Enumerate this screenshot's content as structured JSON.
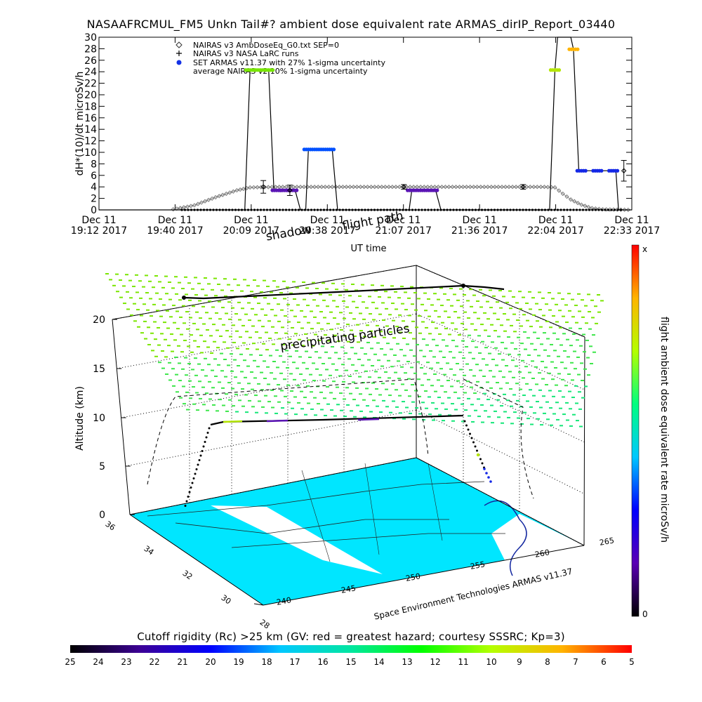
{
  "title": "NASAAFRCMUL_FM5 Unkn Tail#? ambient dose equivalent rate ARMAS_dirIP_Report_03440",
  "chart_data": [
    {
      "type": "line",
      "title": "NASAAFRCMUL_FM5 Unkn Tail#? ambient dose equivalent rate ARMAS_dirIP_Report_03440",
      "xlabel": "UT time",
      "ylabel": "dH*(10)/dt microSv/h",
      "ylim": [
        0,
        30
      ],
      "yticks": [
        "0",
        "2",
        "4",
        "6",
        "8",
        "10",
        "12",
        "14",
        "16",
        "18",
        "20",
        "22",
        "24",
        "26",
        "28",
        "30"
      ],
      "xticks": [
        {
          "line1": "Dec 11",
          "line2": "19:12 2017"
        },
        {
          "line1": "Dec 11",
          "line2": "19:40 2017"
        },
        {
          "line1": "Dec 11",
          "line2": "20:09 2017"
        },
        {
          "line1": "Dec 11",
          "line2": "20:38 2017"
        },
        {
          "line1": "Dec 11",
          "line2": "21:07 2017"
        },
        {
          "line1": "Dec 11",
          "line2": "21:36 2017"
        },
        {
          "line1": "Dec 11",
          "line2": "22:04 2017"
        },
        {
          "line1": "Dec 11",
          "line2": "22:33 2017"
        }
      ],
      "xdomain": [
        "19:12",
        "22:33"
      ],
      "legend": [
        {
          "symbol": "diamond",
          "label": "NAIRAS v3 AmbDoseEq_G0.txt SEP=0"
        },
        {
          "symbol": "plus",
          "label": "NAIRAS v3 NASA LaRC runs"
        },
        {
          "symbol": "blue-dot",
          "label": "SET ARMAS v11.37 with 27% 1-sigma uncertainty"
        },
        {
          "symbol": "none",
          "label": "average NAIRAS v2 10% 1-sigma uncertainty"
        }
      ],
      "legend_position": "top-left",
      "annotations": [
        "shadow",
        "flight path"
      ],
      "series": [
        {
          "name": "NAIRAS v3 AmbDoseEq_G0.txt SEP=0",
          "style": "diamond",
          "color": "#777777",
          "points": [
            [
              "19:40",
              0.1
            ],
            [
              "19:48",
              0.8
            ],
            [
              "19:56",
              2.2
            ],
            [
              "20:04",
              3.4
            ],
            [
              "20:09",
              3.9
            ],
            [
              "20:20",
              4.0
            ],
            [
              "20:40",
              4.0
            ],
            [
              "21:00",
              4.0
            ],
            [
              "21:20",
              4.0
            ],
            [
              "21:40",
              4.0
            ],
            [
              "22:00",
              4.0
            ],
            [
              "22:04",
              3.9
            ],
            [
              "22:07",
              2.8
            ],
            [
              "22:10",
              1.8
            ],
            [
              "22:14",
              0.9
            ],
            [
              "22:18",
              0.3
            ],
            [
              "22:22",
              0.1
            ],
            [
              "22:33",
              0.0
            ]
          ]
        },
        {
          "name": "SET ARMAS v11.37 with 27% 1-sigma uncertainty",
          "style": "dots",
          "points": [
            {
              "x": "20:09",
              "y": 24.3,
              "c": "#78e600"
            },
            {
              "x": "20:12",
              "y": 24.3,
              "c": "#78e600"
            },
            {
              "x": "20:16",
              "y": 24.3,
              "c": "#78e600"
            },
            {
              "x": "20:19",
              "y": 3.4,
              "c": "#5a14b4"
            },
            {
              "x": "20:22",
              "y": 3.4,
              "c": "#5a14b4"
            },
            {
              "x": "20:25",
              "y": 3.4,
              "c": "#5a14b4"
            },
            {
              "x": "20:31",
              "y": 10.5,
              "c": "#0050ff"
            },
            {
              "x": "20:35",
              "y": 10.5,
              "c": "#0050ff"
            },
            {
              "x": "20:39",
              "y": 10.5,
              "c": "#0050ff"
            },
            {
              "x": "21:10",
              "y": 3.4,
              "c": "#5a14b4"
            },
            {
              "x": "21:14",
              "y": 3.4,
              "c": "#5a14b4"
            },
            {
              "x": "21:18",
              "y": 3.4,
              "c": "#5a14b4"
            },
            {
              "x": "22:04",
              "y": 24.3,
              "c": "#b4e600"
            },
            {
              "x": "22:11",
              "y": 27.9,
              "c": "#ffb400"
            },
            {
              "x": "22:14",
              "y": 6.8,
              "c": "#1428e6"
            },
            {
              "x": "22:20",
              "y": 6.8,
              "c": "#1428e6"
            },
            {
              "x": "22:26",
              "y": 6.8,
              "c": "#1428e6"
            }
          ]
        },
        {
          "name": "SET ARMAS v11.37 step",
          "style": "line",
          "color": "#000000",
          "points": [
            [
              "19:12",
              0
            ],
            [
              "20:07",
              0
            ],
            [
              "20:09",
              24.3
            ],
            [
              "20:16",
              24.3
            ],
            [
              "20:18",
              3.4
            ],
            [
              "20:26",
              3.4
            ],
            [
              "20:28",
              0
            ],
            [
              "20:30",
              0
            ],
            [
              "20:31",
              10.5
            ],
            [
              "20:40",
              10.5
            ],
            [
              "20:42",
              0
            ],
            [
              "21:09",
              0
            ],
            [
              "21:10",
              3.4
            ],
            [
              "21:19",
              3.4
            ],
            [
              "21:21",
              0
            ],
            [
              "22:02",
              0
            ],
            [
              "22:04",
              24.3
            ],
            [
              "22:05",
              30
            ],
            [
              "22:10",
              30
            ],
            [
              "22:11",
              27.9
            ],
            [
              "22:13",
              6.8
            ],
            [
              "22:27",
              6.8
            ],
            [
              "22:28",
              0
            ],
            [
              "22:33",
              0
            ]
          ]
        }
      ],
      "error_bars": [
        {
          "x": "20:14",
          "y": 4.0,
          "lo": 2.9,
          "hi": 5.1,
          "marker": "diamond"
        },
        {
          "x": "20:24",
          "y": 3.4,
          "lo": 2.5,
          "hi": 4.3,
          "marker": "diamond"
        },
        {
          "x": "21:07",
          "y": 4.0,
          "lo": 3.6,
          "hi": 4.4,
          "marker": "diamond"
        },
        {
          "x": "21:52",
          "y": 4.0,
          "lo": 3.6,
          "hi": 4.4,
          "marker": "diamond"
        },
        {
          "x": "22:30",
          "y": 6.8,
          "lo": 5.0,
          "hi": 8.6,
          "marker": "plus"
        }
      ]
    },
    {
      "type": "3d-surface",
      "zlabel": "Altitude (km)",
      "zticks": [
        "0",
        "5",
        "10",
        "15",
        "20"
      ],
      "yticks": [
        "36",
        "34",
        "32",
        "30",
        "28"
      ],
      "xticks": [
        "240",
        "245",
        "250",
        "255",
        "260",
        "265"
      ],
      "annotations": [
        "precipitating particles"
      ],
      "credit": "Space Environment Technologies ARMAS v11.37",
      "colorbar": {
        "label": "flight ambient dose equivalent rate microSv/h",
        "top": "x",
        "bottom": "0",
        "colors": [
          "#000000",
          "#5a00b4",
          "#0000ff",
          "#00c8ff",
          "#00ff80",
          "#b4ff00",
          "#ffb400",
          "#ff0000"
        ]
      },
      "flight_path_altitude_km": [
        0,
        9.5,
        9.7,
        10.0,
        10.1,
        9.8,
        6.0,
        0
      ]
    },
    {
      "type": "colorbar",
      "title": "Cutoff rigidity (Rc) >25 km (GV: red = greatest hazard; courtesy SSSRC; Kp=3)",
      "tick_labels": [
        "25",
        "24",
        "23",
        "22",
        "21",
        "20",
        "19",
        "18",
        "17",
        "16",
        "15",
        "14",
        "13",
        "12",
        "11",
        "10",
        "9",
        "8",
        "7",
        "6",
        "5"
      ],
      "colors": [
        "#000000",
        "#3c0096",
        "#0000ff",
        "#00c8ff",
        "#00e6a0",
        "#00ff00",
        "#b4ff00",
        "#ffb400",
        "#ff0000"
      ]
    }
  ]
}
